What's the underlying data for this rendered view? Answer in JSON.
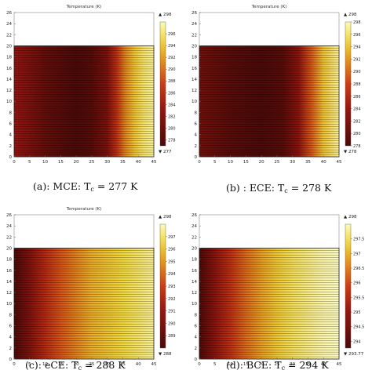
{
  "chart_data": [
    {
      "type": "heatmap",
      "title": "Temperature (K)",
      "caption_prefix": "(a):  MCE: T",
      "caption_sub": "c",
      "caption_suffix": " = 277 K",
      "xlim": [
        0,
        45
      ],
      "ylim": [
        0,
        26
      ],
      "xticks": [
        0,
        5,
        10,
        15,
        20,
        25,
        30,
        35,
        40,
        45
      ],
      "yticks": [
        0,
        2,
        4,
        6,
        8,
        10,
        12,
        14,
        16,
        18,
        20,
        22,
        24,
        26
      ],
      "domain_x": [
        0,
        45
      ],
      "domain_y": [
        0,
        20
      ],
      "profile_x": [
        0,
        10,
        20,
        25,
        30,
        33,
        36,
        39,
        42,
        45
      ],
      "profile_t": [
        283,
        279,
        277,
        278,
        281,
        286,
        291,
        294,
        296,
        297
      ],
      "colorbar_max_label": "▲ 298",
      "colorbar_min_label": "▼ 277",
      "colorbar_ticks": [
        296,
        294,
        292,
        290,
        288,
        286,
        284,
        282,
        280,
        278
      ],
      "colorbar_range": [
        277,
        298
      ],
      "grid": true
    },
    {
      "type": "heatmap",
      "title": "Temperature (K)",
      "caption_prefix": "(b) :  ECE: T",
      "caption_sub": "c",
      "caption_suffix": " = 278 K",
      "xlim": [
        0,
        45
      ],
      "ylim": [
        0,
        26
      ],
      "xticks": [
        0,
        5,
        10,
        15,
        20,
        25,
        30,
        35,
        40,
        45
      ],
      "yticks": [
        0,
        2,
        4,
        6,
        8,
        10,
        12,
        14,
        16,
        18,
        20,
        22,
        24,
        26
      ],
      "domain_x": [
        0,
        45
      ],
      "domain_y": [
        0,
        20
      ],
      "profile_x": [
        0,
        10,
        20,
        27,
        32,
        36,
        40,
        45
      ],
      "profile_t": [
        281,
        279,
        278,
        279,
        283,
        289,
        294,
        297
      ],
      "colorbar_max_label": "▲ 298",
      "colorbar_min_label": "▼ 278",
      "colorbar_ticks": [
        298,
        296,
        294,
        292,
        290,
        288,
        286,
        284,
        282,
        280,
        278
      ],
      "colorbar_range": [
        278,
        298
      ],
      "grid": true
    },
    {
      "type": "heatmap",
      "title": "Temperature (K)",
      "caption_prefix": "(c):  eCE: T",
      "caption_sub": "c",
      "caption_suffix": " = 288 K",
      "xlim": [
        0,
        45
      ],
      "ylim": [
        0,
        26
      ],
      "xticks": [
        0,
        5,
        10,
        15,
        20,
        25,
        30,
        35,
        40,
        45
      ],
      "yticks": [
        0,
        2,
        4,
        6,
        8,
        10,
        12,
        14,
        16,
        18,
        20,
        22,
        24,
        26
      ],
      "domain_x": [
        0,
        45
      ],
      "domain_y": [
        0,
        20
      ],
      "profile_x": [
        0,
        5,
        10,
        15,
        20,
        25,
        30,
        35,
        40,
        45
      ],
      "profile_t": [
        288,
        290,
        292,
        293.5,
        294.5,
        295.5,
        296,
        296.5,
        297,
        297.5
      ],
      "colorbar_max_label": "▲ 298",
      "colorbar_min_label": "▼ 288",
      "colorbar_ticks": [
        297,
        296,
        295,
        294,
        293,
        292,
        291,
        290,
        289
      ],
      "colorbar_range": [
        288,
        298
      ],
      "grid": true
    },
    {
      "type": "heatmap",
      "title": "",
      "caption_prefix": "(d):  BCE: T",
      "caption_sub": "c",
      "caption_suffix": " = 294 K",
      "xlim": [
        0,
        45
      ],
      "ylim": [
        0,
        26
      ],
      "xticks": [
        0,
        5,
        10,
        15,
        20,
        25,
        30,
        35,
        40,
        45
      ],
      "yticks": [
        0,
        2,
        4,
        6,
        8,
        10,
        12,
        14,
        16,
        18,
        20,
        22,
        24,
        26
      ],
      "domain_x": [
        0,
        45
      ],
      "domain_y": [
        0,
        20
      ],
      "profile_x": [
        0,
        5,
        10,
        15,
        20,
        25,
        30,
        35,
        40,
        45
      ],
      "profile_t": [
        293.8,
        294.8,
        295.6,
        296.3,
        296.8,
        297.2,
        297.5,
        297.7,
        297.9,
        298
      ],
      "colorbar_max_label": "▲ 298",
      "colorbar_min_label": "▼ 293.77",
      "colorbar_ticks": [
        297.5,
        297,
        296.5,
        296,
        295.5,
        295,
        294.5,
        294
      ],
      "colorbar_range": [
        293.77,
        298
      ],
      "grid": true
    }
  ]
}
